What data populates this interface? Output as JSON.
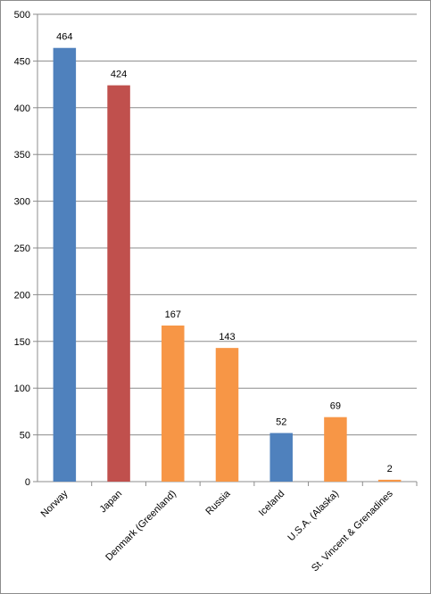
{
  "chart_data": {
    "type": "bar",
    "categories": [
      "Norway",
      "Japan",
      "Denmark (Greenland)",
      "Russia",
      "Iceland",
      "U.S.A. (Alaska)",
      "St. Vincent & Grenadines"
    ],
    "values": [
      464,
      424,
      167,
      143,
      52,
      69,
      2
    ],
    "bar_colors": [
      "#4f81bd",
      "#c0504d",
      "#f79646",
      "#f79646",
      "#4f81bd",
      "#f79646",
      "#f79646"
    ],
    "data_labels": [
      "464",
      "424",
      "167",
      "143",
      "52",
      "69",
      "2"
    ],
    "y_ticks": [
      "0",
      "50",
      "100",
      "150",
      "200",
      "250",
      "300",
      "350",
      "400",
      "450",
      "500"
    ],
    "ylim": [
      0,
      500
    ],
    "title": "",
    "xlabel": "",
    "ylabel": "",
    "grid": true,
    "legend": "none"
  }
}
